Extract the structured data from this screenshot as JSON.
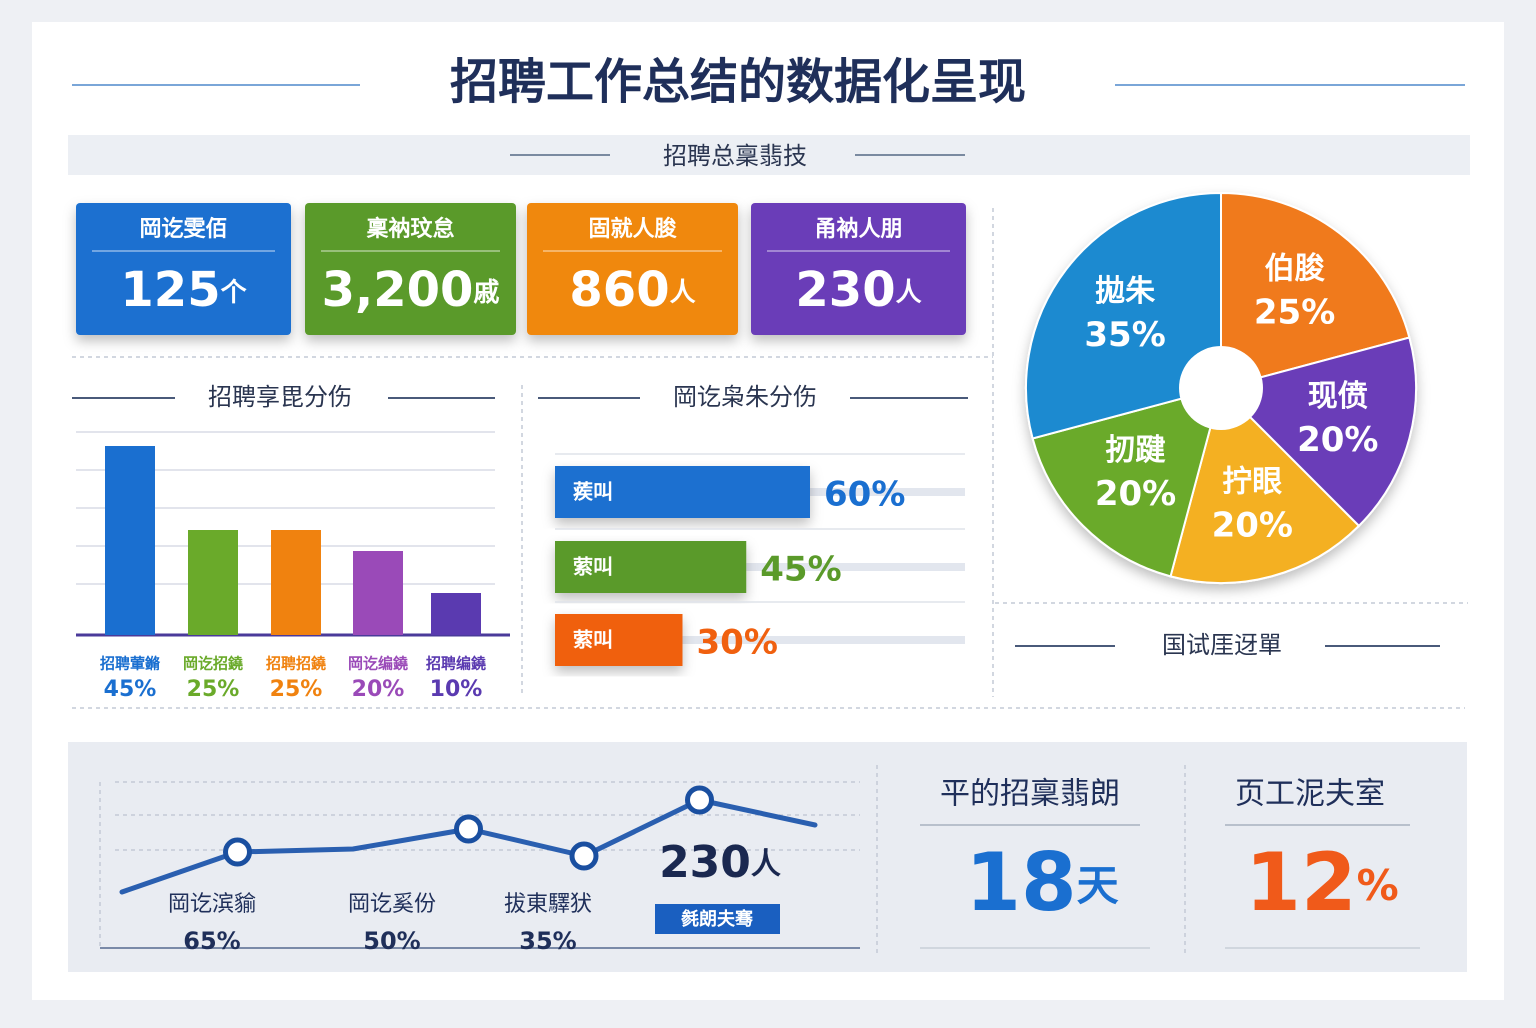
{
  "header": {
    "title": "招聘工作总结的数据化呈现",
    "subtitle": "招聘总稟翡技"
  },
  "kpis": [
    {
      "label": "岡讫雯佰",
      "value": "125",
      "unit": "个",
      "color": "#1a6fd0"
    },
    {
      "label": "稟衲玟怠",
      "value": "3,200",
      "unit": "戚",
      "color": "#5a9a2a"
    },
    {
      "label": "固就人朘",
      "value": "860",
      "unit": "人",
      "color": "#f0880f"
    },
    {
      "label": "甬衲人朋",
      "value": "230",
      "unit": "人",
      "color": "#6a3cb8"
    }
  ],
  "chart_data": [
    {
      "type": "bar",
      "title": "招聘享毘分伤",
      "categories": [
        "招聘葷鏅",
        "岡讫招鐃",
        "招聘招鐃",
        "岡讫编鐃",
        "招聘编鐃"
      ],
      "values": [
        45,
        25,
        25,
        20,
        10
      ],
      "value_labels": [
        "45%",
        "25%",
        "25%",
        "20%",
        "10%"
      ],
      "colors": [
        "#1a6fd0",
        "#6aaa2a",
        "#f0820f",
        "#9a4ab8",
        "#5a3ab0"
      ]
    },
    {
      "type": "hbar",
      "title": "岡讫枭朱分伤",
      "categories": [
        "蒺叫",
        "萦叫",
        "萦叫"
      ],
      "values": [
        60,
        45,
        30
      ],
      "value_labels": [
        "60%",
        "45%",
        "30%"
      ],
      "colors": [
        "#1a6fd0",
        "#5a9a2a",
        "#f0600f"
      ]
    },
    {
      "type": "pie",
      "subtitle": "国试厓迓單",
      "categories": [
        "伯朘",
        "现偾",
        "拧眼",
        "扨踺",
        "拋朱"
      ],
      "values": [
        25,
        20,
        20,
        20,
        35
      ],
      "value_labels": [
        "25%",
        "20%",
        "20%",
        "20%",
        "35%"
      ],
      "colors": [
        "#f07a1a",
        "#6a3cb8",
        "#f4b020",
        "#6aaa2a",
        "#1a8ad0"
      ]
    },
    {
      "type": "line",
      "color": "#2a5fb0",
      "values": [
        58,
        98,
        101,
        121,
        94,
        150,
        125
      ],
      "markers": [
        false,
        true,
        false,
        true,
        true,
        true,
        false
      ],
      "annotations": [
        {
          "text": "岡讫滨貐",
          "value": "65%"
        },
        {
          "text": "岡讫奚份",
          "value": "50%"
        },
        {
          "text": "拔東驛犾",
          "value": "35%"
        }
      ],
      "highlight": {
        "value": "230",
        "unit": "人",
        "badge": "毵朗夫骞"
      }
    }
  ],
  "stats": [
    {
      "label": "平的招稟翡朗",
      "value": "18",
      "unit": "天",
      "color": "#1a6fd0"
    },
    {
      "label": "页工泥夫室",
      "value": "12",
      "unit": "%",
      "color": "#f05a1a"
    }
  ]
}
